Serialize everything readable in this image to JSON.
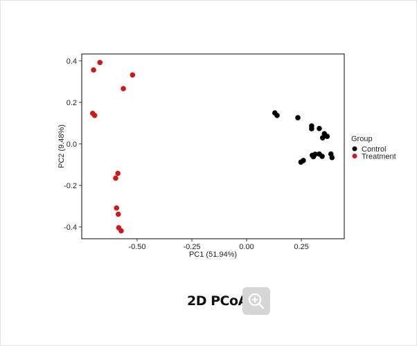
{
  "chart_data": {
    "type": "scatter",
    "title": "2D PCoA",
    "xlabel": "PC1 (51.94%)",
    "ylabel": "PC2 (9.48%)",
    "xlim": [
      -0.753,
      0.446
    ],
    "ylim": [
      -0.457,
      0.433
    ],
    "xticks": [
      -0.5,
      -0.25,
      0.0,
      0.25
    ],
    "xtick_labels": [
      "-0.50",
      "-0.25",
      "0.00",
      "0.25"
    ],
    "yticks": [
      0.4,
      0.2,
      0.0,
      -0.2,
      -0.4
    ],
    "ytick_labels": [
      "0.4",
      "0.2",
      "0.0",
      "-0.2",
      "-0.4"
    ],
    "grid": false,
    "legend": {
      "title": "Group",
      "placement": "right"
    },
    "series": [
      {
        "name": "Control",
        "color": "#000000",
        "points": [
          [
            0.129,
            0.149
          ],
          [
            0.139,
            0.137
          ],
          [
            0.234,
            0.126
          ],
          [
            0.297,
            0.086
          ],
          [
            0.297,
            0.073
          ],
          [
            0.332,
            0.074
          ],
          [
            0.355,
            0.049
          ],
          [
            0.368,
            0.036
          ],
          [
            0.347,
            0.029
          ],
          [
            0.248,
            -0.088
          ],
          [
            0.259,
            -0.08
          ],
          [
            0.305,
            -0.062
          ],
          [
            0.313,
            -0.05
          ],
          [
            0.332,
            -0.049
          ],
          [
            0.345,
            -0.06
          ],
          [
            0.385,
            -0.049
          ],
          [
            0.39,
            -0.066
          ],
          [
            0.3,
            -0.055
          ]
        ]
      },
      {
        "name": "Treatment",
        "color": "#cc1a1a",
        "points": [
          [
            -0.67,
            0.392
          ],
          [
            -0.699,
            0.356
          ],
          [
            -0.521,
            0.332
          ],
          [
            -0.563,
            0.266
          ],
          [
            -0.703,
            0.147
          ],
          [
            -0.694,
            0.137
          ],
          [
            -0.588,
            -0.142
          ],
          [
            -0.598,
            -0.165
          ],
          [
            -0.594,
            -0.309
          ],
          [
            -0.586,
            -0.339
          ],
          [
            -0.584,
            -0.404
          ],
          [
            -0.573,
            -0.419
          ]
        ]
      }
    ]
  },
  "caption": {
    "title": "2D PCoA",
    "zoom_icon": "zoom-in-icon"
  }
}
